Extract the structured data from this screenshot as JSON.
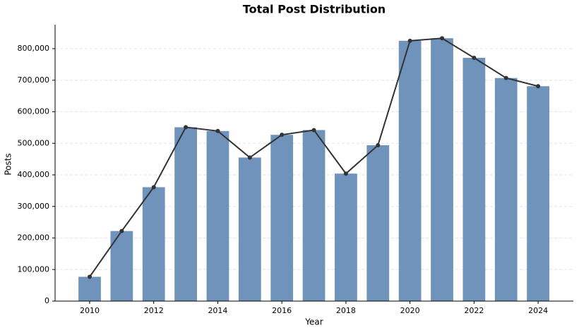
{
  "chart_data": {
    "type": "bar",
    "title": "Total Post Distribution",
    "x_label": "Year",
    "y_label": "Posts",
    "x": [
      2010,
      2011,
      2012,
      2013,
      2014,
      2015,
      2016,
      2017,
      2018,
      2019,
      2020,
      2021,
      2022,
      2023,
      2024
    ],
    "values": [
      77000,
      222000,
      361000,
      551000,
      539000,
      455000,
      527000,
      542000,
      404000,
      494000,
      825000,
      833000,
      771000,
      707000,
      681000
    ],
    "color": "#6f93bb",
    "line": true,
    "line_color": "#333333",
    "xlim": [
      2008.92,
      2025.1
    ],
    "xticks": [
      2010,
      2012,
      2014,
      2016,
      2018,
      2020,
      2022,
      2024
    ],
    "ylim": [
      0,
      876000
    ],
    "yticks": [
      0,
      {
        "value": 100000,
        "label": "100,000"
      },
      {
        "value": 200000,
        "label": "200,000"
      },
      {
        "value": 300000,
        "label": "300,000"
      },
      {
        "value": 400000,
        "label": "400,000"
      },
      {
        "value": 500000,
        "label": "500,000"
      },
      {
        "value": 600000,
        "label": "600,000"
      },
      {
        "value": 700000,
        "label": "700,000"
      },
      {
        "value": 800000,
        "label": "800,000"
      }
    ],
    "grid": true
  }
}
